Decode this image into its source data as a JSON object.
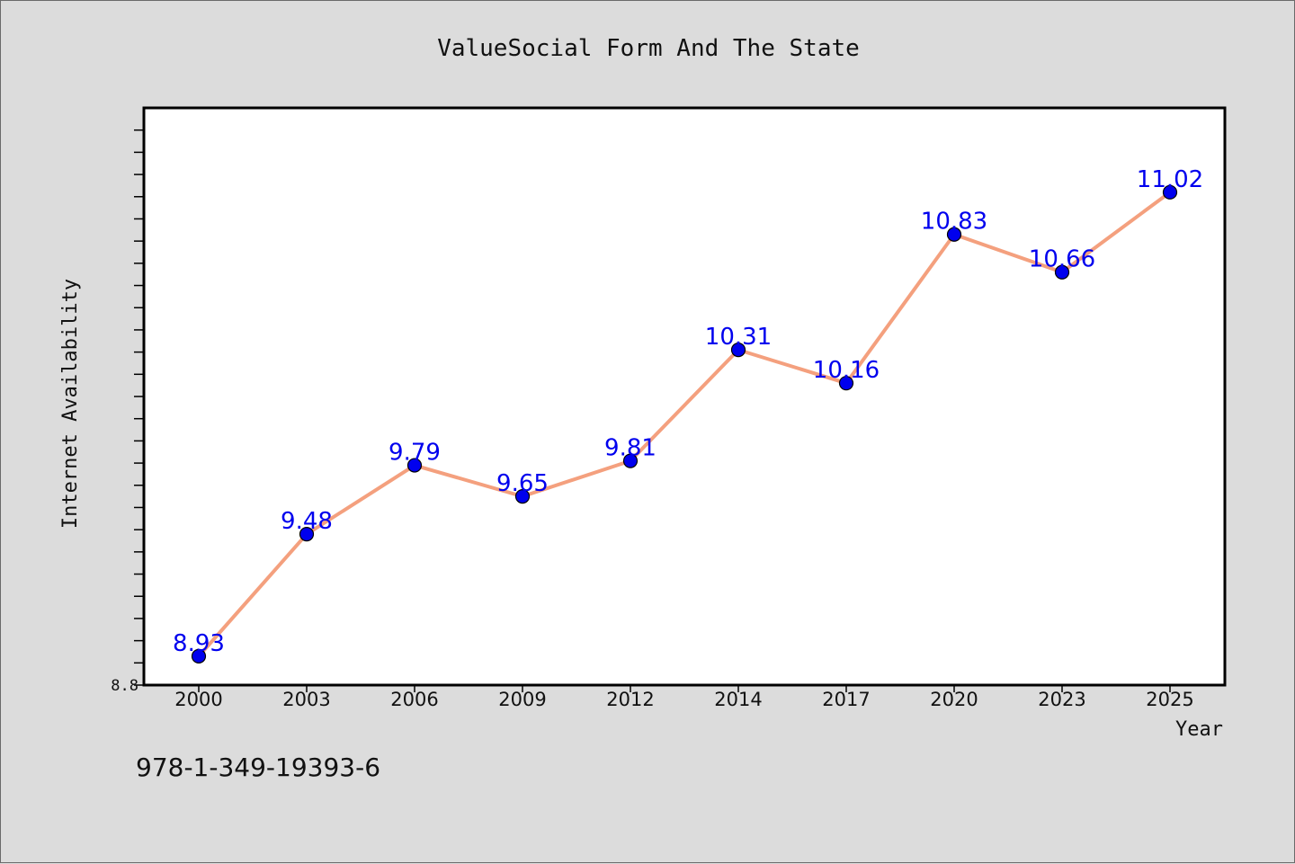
{
  "chart_data": {
    "type": "line",
    "title": "ValueSocial Form And The State",
    "xlabel": "Year",
    "ylabel": "Internet Availability",
    "categories": [
      "2000",
      "2003",
      "2006",
      "2009",
      "2012",
      "2014",
      "2017",
      "2020",
      "2023",
      "2025"
    ],
    "series": [
      {
        "values": [
          8.93,
          9.48,
          9.79,
          9.65,
          9.81,
          10.31,
          10.16,
          10.83,
          10.66,
          11.02
        ],
        "data_labels": [
          "8.93",
          "9.48",
          "9.79",
          "9.65",
          "9.81",
          "10.31",
          "10.16",
          "10.83",
          "10.66",
          "11.02"
        ],
        "line_color": "#f4a07e",
        "marker_color": "#0000ee",
        "label_color": "#0000ee"
      }
    ],
    "ylim": [
      8.8,
      11.4
    ],
    "y_tick_labels": [
      "8.8"
    ],
    "y_minor_tick_step": 0.1,
    "grid": false,
    "plot_background": "#ffffff",
    "figure_background": "#dcdcdc"
  },
  "annotation": "978-1-349-19393-6"
}
